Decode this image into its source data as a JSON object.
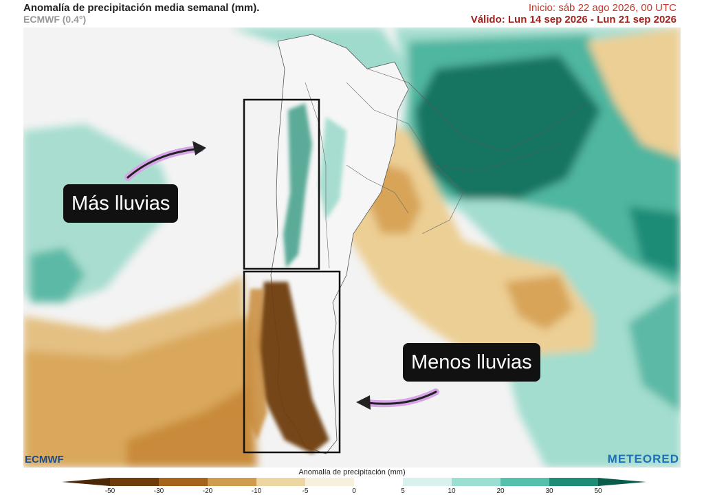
{
  "header": {
    "title": "Anomalía de precipitación media semanal (mm).",
    "model": "ECMWF (0.4°)",
    "init": "Inicio:  sáb 22 ago 2026, 00 UTC",
    "valid": "Válido: Lun 14 sep 2026 - Lun 21 sep 2026"
  },
  "annotations": {
    "more_rain": "Más lluvias",
    "less_rain": "Menos lluvias"
  },
  "legend": {
    "title": "Anomalía de precipitación (mm)",
    "ticks": [
      "-50",
      "-30",
      "-20",
      "-10",
      "-5",
      "0",
      "5",
      "10",
      "20",
      "30",
      "50"
    ],
    "colors": [
      "#6e3d0a",
      "#a7651b",
      "#cf9b4d",
      "#ecd6a2",
      "#f7f0dc",
      "#ffffff",
      "#d9f1ee",
      "#9adfd2",
      "#57c0ad",
      "#1f8c77",
      "#0a5d4a"
    ]
  },
  "brands": {
    "left": "ECMWF",
    "right": "METEORED"
  }
}
